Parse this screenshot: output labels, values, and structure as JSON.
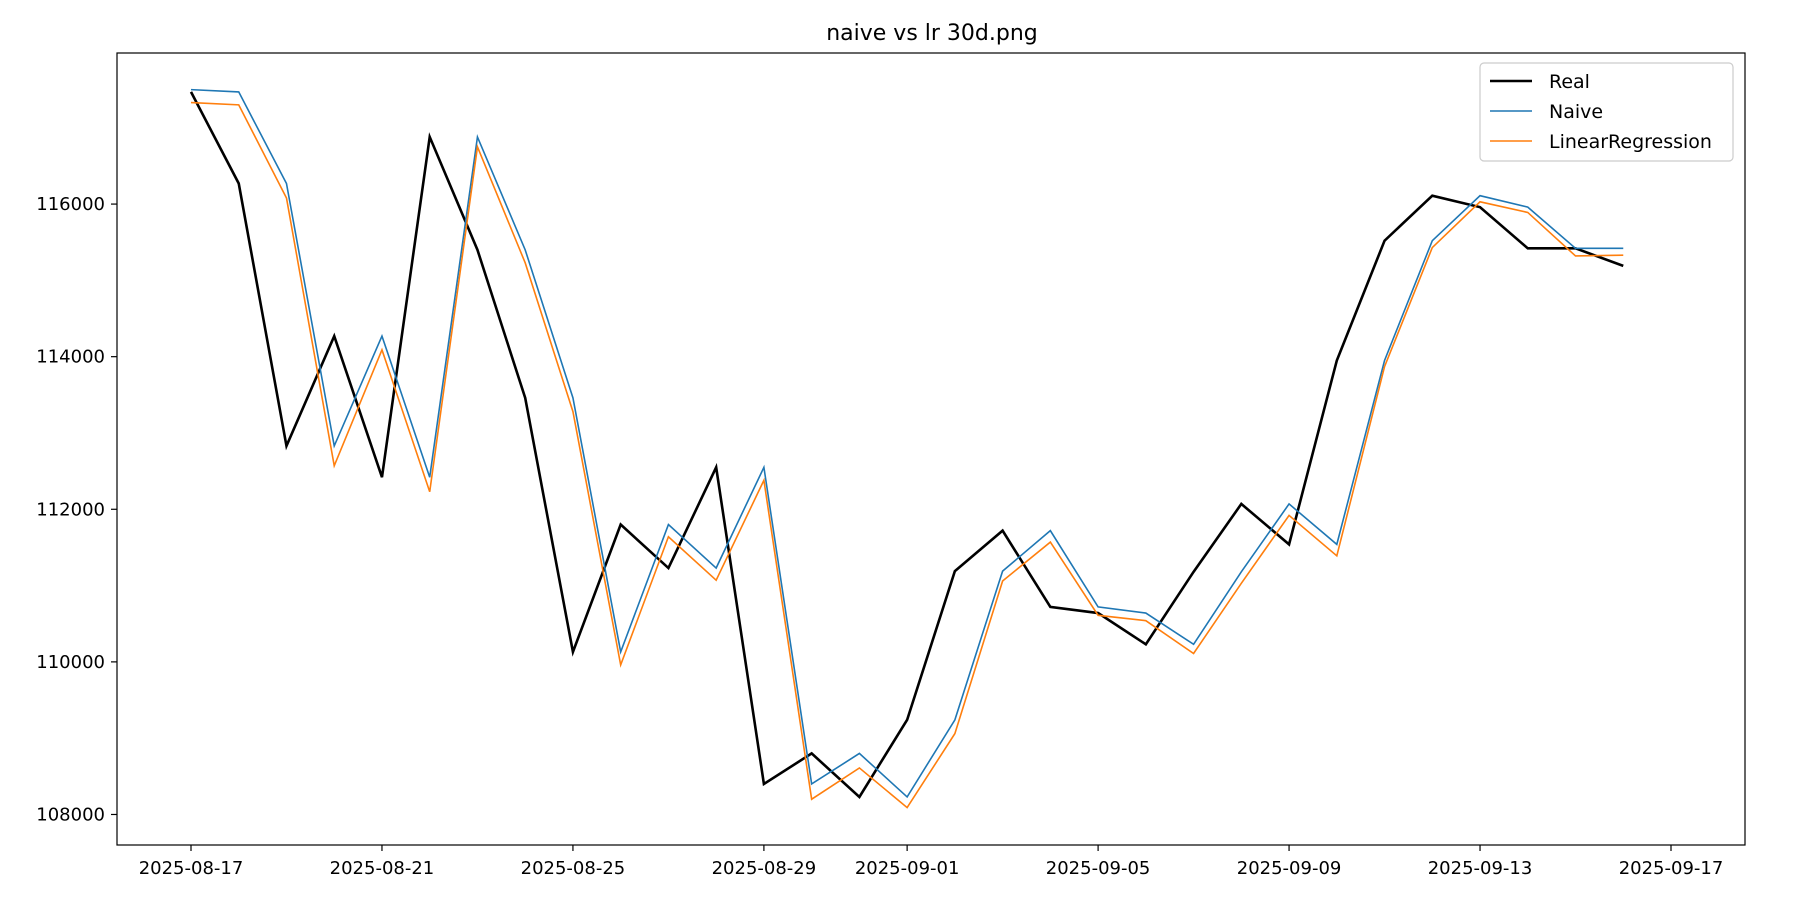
{
  "chart_data": {
    "type": "line",
    "title": "naive vs lr 30d.png",
    "xlabel": "",
    "ylabel": "",
    "x": [
      "2025-08-17",
      "2025-08-18",
      "2025-08-19",
      "2025-08-20",
      "2025-08-21",
      "2025-08-22",
      "2025-08-23",
      "2025-08-24",
      "2025-08-25",
      "2025-08-26",
      "2025-08-27",
      "2025-08-28",
      "2025-08-29",
      "2025-08-30",
      "2025-08-31",
      "2025-09-01",
      "2025-09-02",
      "2025-09-03",
      "2025-09-04",
      "2025-09-05",
      "2025-09-06",
      "2025-09-07",
      "2025-09-08",
      "2025-09-09",
      "2025-09-10",
      "2025-09-11",
      "2025-09-12",
      "2025-09-13",
      "2025-09-14",
      "2025-09-15",
      "2025-09-16"
    ],
    "xlim": [
      "2025-08-17",
      "2025-09-17"
    ],
    "ylim": [
      107600,
      117980
    ],
    "x_ticks": [
      "2025-08-17",
      "2025-08-21",
      "2025-08-25",
      "2025-08-29",
      "2025-09-01",
      "2025-09-05",
      "2025-09-09",
      "2025-09-13",
      "2025-09-17"
    ],
    "y_ticks": [
      108000,
      110000,
      112000,
      114000,
      116000
    ],
    "grid": false,
    "legend_position": "top-right",
    "series": [
      {
        "name": "Real",
        "color": "#000000",
        "values": [
          117470,
          116270,
          112830,
          114270,
          112420,
          116880,
          115400,
          113460,
          110130,
          111800,
          111230,
          112550,
          108400,
          108800,
          108230,
          109240,
          111190,
          111720,
          110720,
          110640,
          110230,
          111180,
          112070,
          111540,
          113950,
          115520,
          116110,
          115960,
          115420,
          115420,
          115190
        ]
      },
      {
        "name": "Naive",
        "color": "#1f77b4",
        "values": [
          117500,
          117470,
          116270,
          112830,
          114270,
          112420,
          116880,
          115400,
          113460,
          110130,
          111800,
          111230,
          112550,
          108400,
          108800,
          108230,
          109240,
          111190,
          111720,
          110720,
          110640,
          110230,
          111180,
          112070,
          111540,
          113950,
          115520,
          116110,
          115960,
          115420,
          115420
        ]
      },
      {
        "name": "LinearRegression",
        "color": "#ff7f0e",
        "values": [
          117330,
          117300,
          116080,
          112570,
          114090,
          112230,
          116750,
          115230,
          113280,
          109960,
          111640,
          111070,
          112380,
          108200,
          108610,
          108090,
          109060,
          111060,
          111570,
          110610,
          110540,
          110110,
          111030,
          111920,
          111390,
          113870,
          115430,
          116030,
          115890,
          115320,
          115330
        ]
      }
    ]
  }
}
